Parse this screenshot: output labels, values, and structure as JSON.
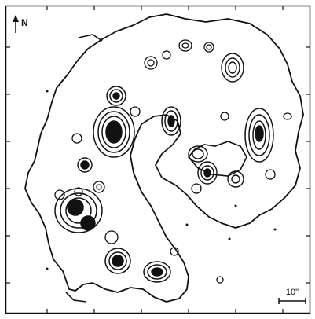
{
  "figure": {
    "north_label": "N",
    "scale_label": "10\"",
    "ink_color": "#111111",
    "background_color": "#ffffff"
  }
}
